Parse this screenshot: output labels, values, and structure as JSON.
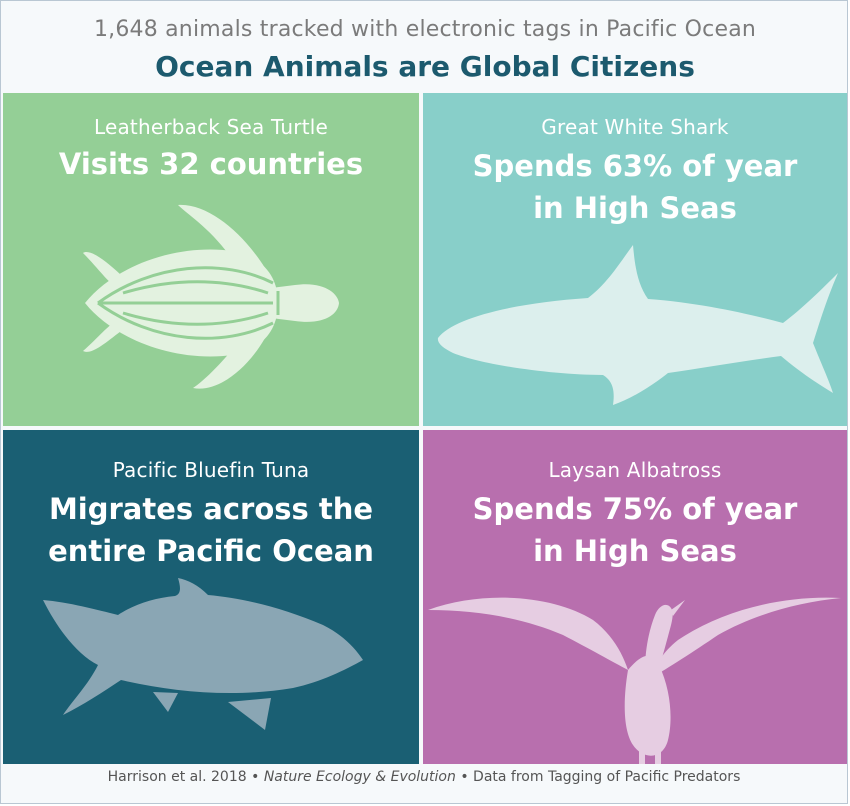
{
  "header": {
    "subtitle": "1,648 animals tracked with electronic tags in Pacific Ocean",
    "title": "Ocean Animals are Global Citizens"
  },
  "panels": {
    "turtle": {
      "name": "Leatherback Sea Turtle",
      "fact": "Visits 32 countries",
      "icon": "sea-turtle-icon",
      "color": "#94cf96"
    },
    "shark": {
      "name": "Great White Shark",
      "fact_line1": "Spends 63% of year",
      "fact_line2": "in High Seas",
      "icon": "shark-icon",
      "color": "#88cfc9"
    },
    "tuna": {
      "name": "Pacific Bluefin Tuna",
      "fact_line1": "Migrates across the",
      "fact_line2": "entire Pacific Ocean",
      "icon": "tuna-icon",
      "color": "#1a5f73"
    },
    "albatross": {
      "name": "Laysan Albatross",
      "fact_line1": "Spends 75% of year",
      "fact_line2": "in High Seas",
      "icon": "albatross-icon",
      "color": "#b86fae"
    }
  },
  "footer": {
    "authors": "Harrison et al. 2018",
    "sep1": " • ",
    "journal": "Nature Ecology & Evolution",
    "sep2": " • ",
    "source": "Data from Tagging of Pacific Predators"
  }
}
